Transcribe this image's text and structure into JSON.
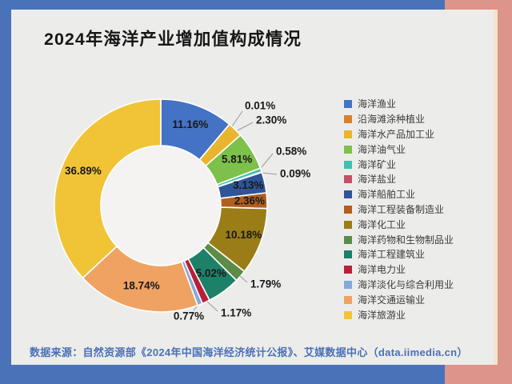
{
  "title": "2024年海洋产业增加值构成情况",
  "source": "数据来源：自然资源部《2024年中国海洋经济统计公报》、艾媒数据中心（data.iimedia.cn）",
  "frame_colors": {
    "blue": "#4a72b8",
    "pink": "#dd948a",
    "stripe": "#f3e4cf",
    "panel": "#ececeb",
    "source_text": "#4a70b5"
  },
  "chart_data": {
    "type": "pie",
    "donut": true,
    "title": "2024年海洋产业增加值构成情况",
    "unit": "%",
    "legend_position": "right",
    "start_angle": "top",
    "direction": "clockwise",
    "slices": [
      {
        "name": "海洋渔业",
        "value": 11.16,
        "label": "11.16%",
        "color": "#4472c4"
      },
      {
        "name": "沿海滩涂种植业",
        "value": 0.01,
        "label": "0.01%",
        "color": "#d9802e"
      },
      {
        "name": "海洋水产品加工业",
        "value": 2.3,
        "label": "2.30%",
        "color": "#e9b52f"
      },
      {
        "name": "海洋油气业",
        "value": 5.81,
        "label": "5.81%",
        "color": "#7dc04a"
      },
      {
        "name": "海洋矿业",
        "value": 0.58,
        "label": "0.58%",
        "color": "#41bfae"
      },
      {
        "name": "海洋盐业",
        "value": 0.09,
        "label": "0.09%",
        "color": "#c75066"
      },
      {
        "name": "海洋船舶工业",
        "value": 3.13,
        "label": "3.13%",
        "color": "#2f5597"
      },
      {
        "name": "海洋工程装备制造业",
        "value": 2.36,
        "label": "2.36%",
        "color": "#b25e1f"
      },
      {
        "name": "海洋化工业",
        "value": 10.18,
        "label": "10.18%",
        "color": "#9a7d16"
      },
      {
        "name": "海洋药物和生物制品业",
        "value": 1.79,
        "label": "1.79%",
        "color": "#5c8c46"
      },
      {
        "name": "海洋工程建筑业",
        "value": 5.02,
        "label": "5.02%",
        "color": "#1d8069"
      },
      {
        "name": "海洋电力业",
        "value": 1.17,
        "label": "1.17%",
        "color": "#b92037"
      },
      {
        "name": "海洋淡化与综合利用业",
        "value": 0.77,
        "label": "0.77%",
        "color": "#83aadb"
      },
      {
        "name": "海洋交通运输业",
        "value": 18.74,
        "label": "18.74%",
        "color": "#f0a263"
      },
      {
        "name": "海洋旅游业",
        "value": 36.89,
        "label": "36.89%",
        "color": "#f1c437"
      }
    ]
  }
}
